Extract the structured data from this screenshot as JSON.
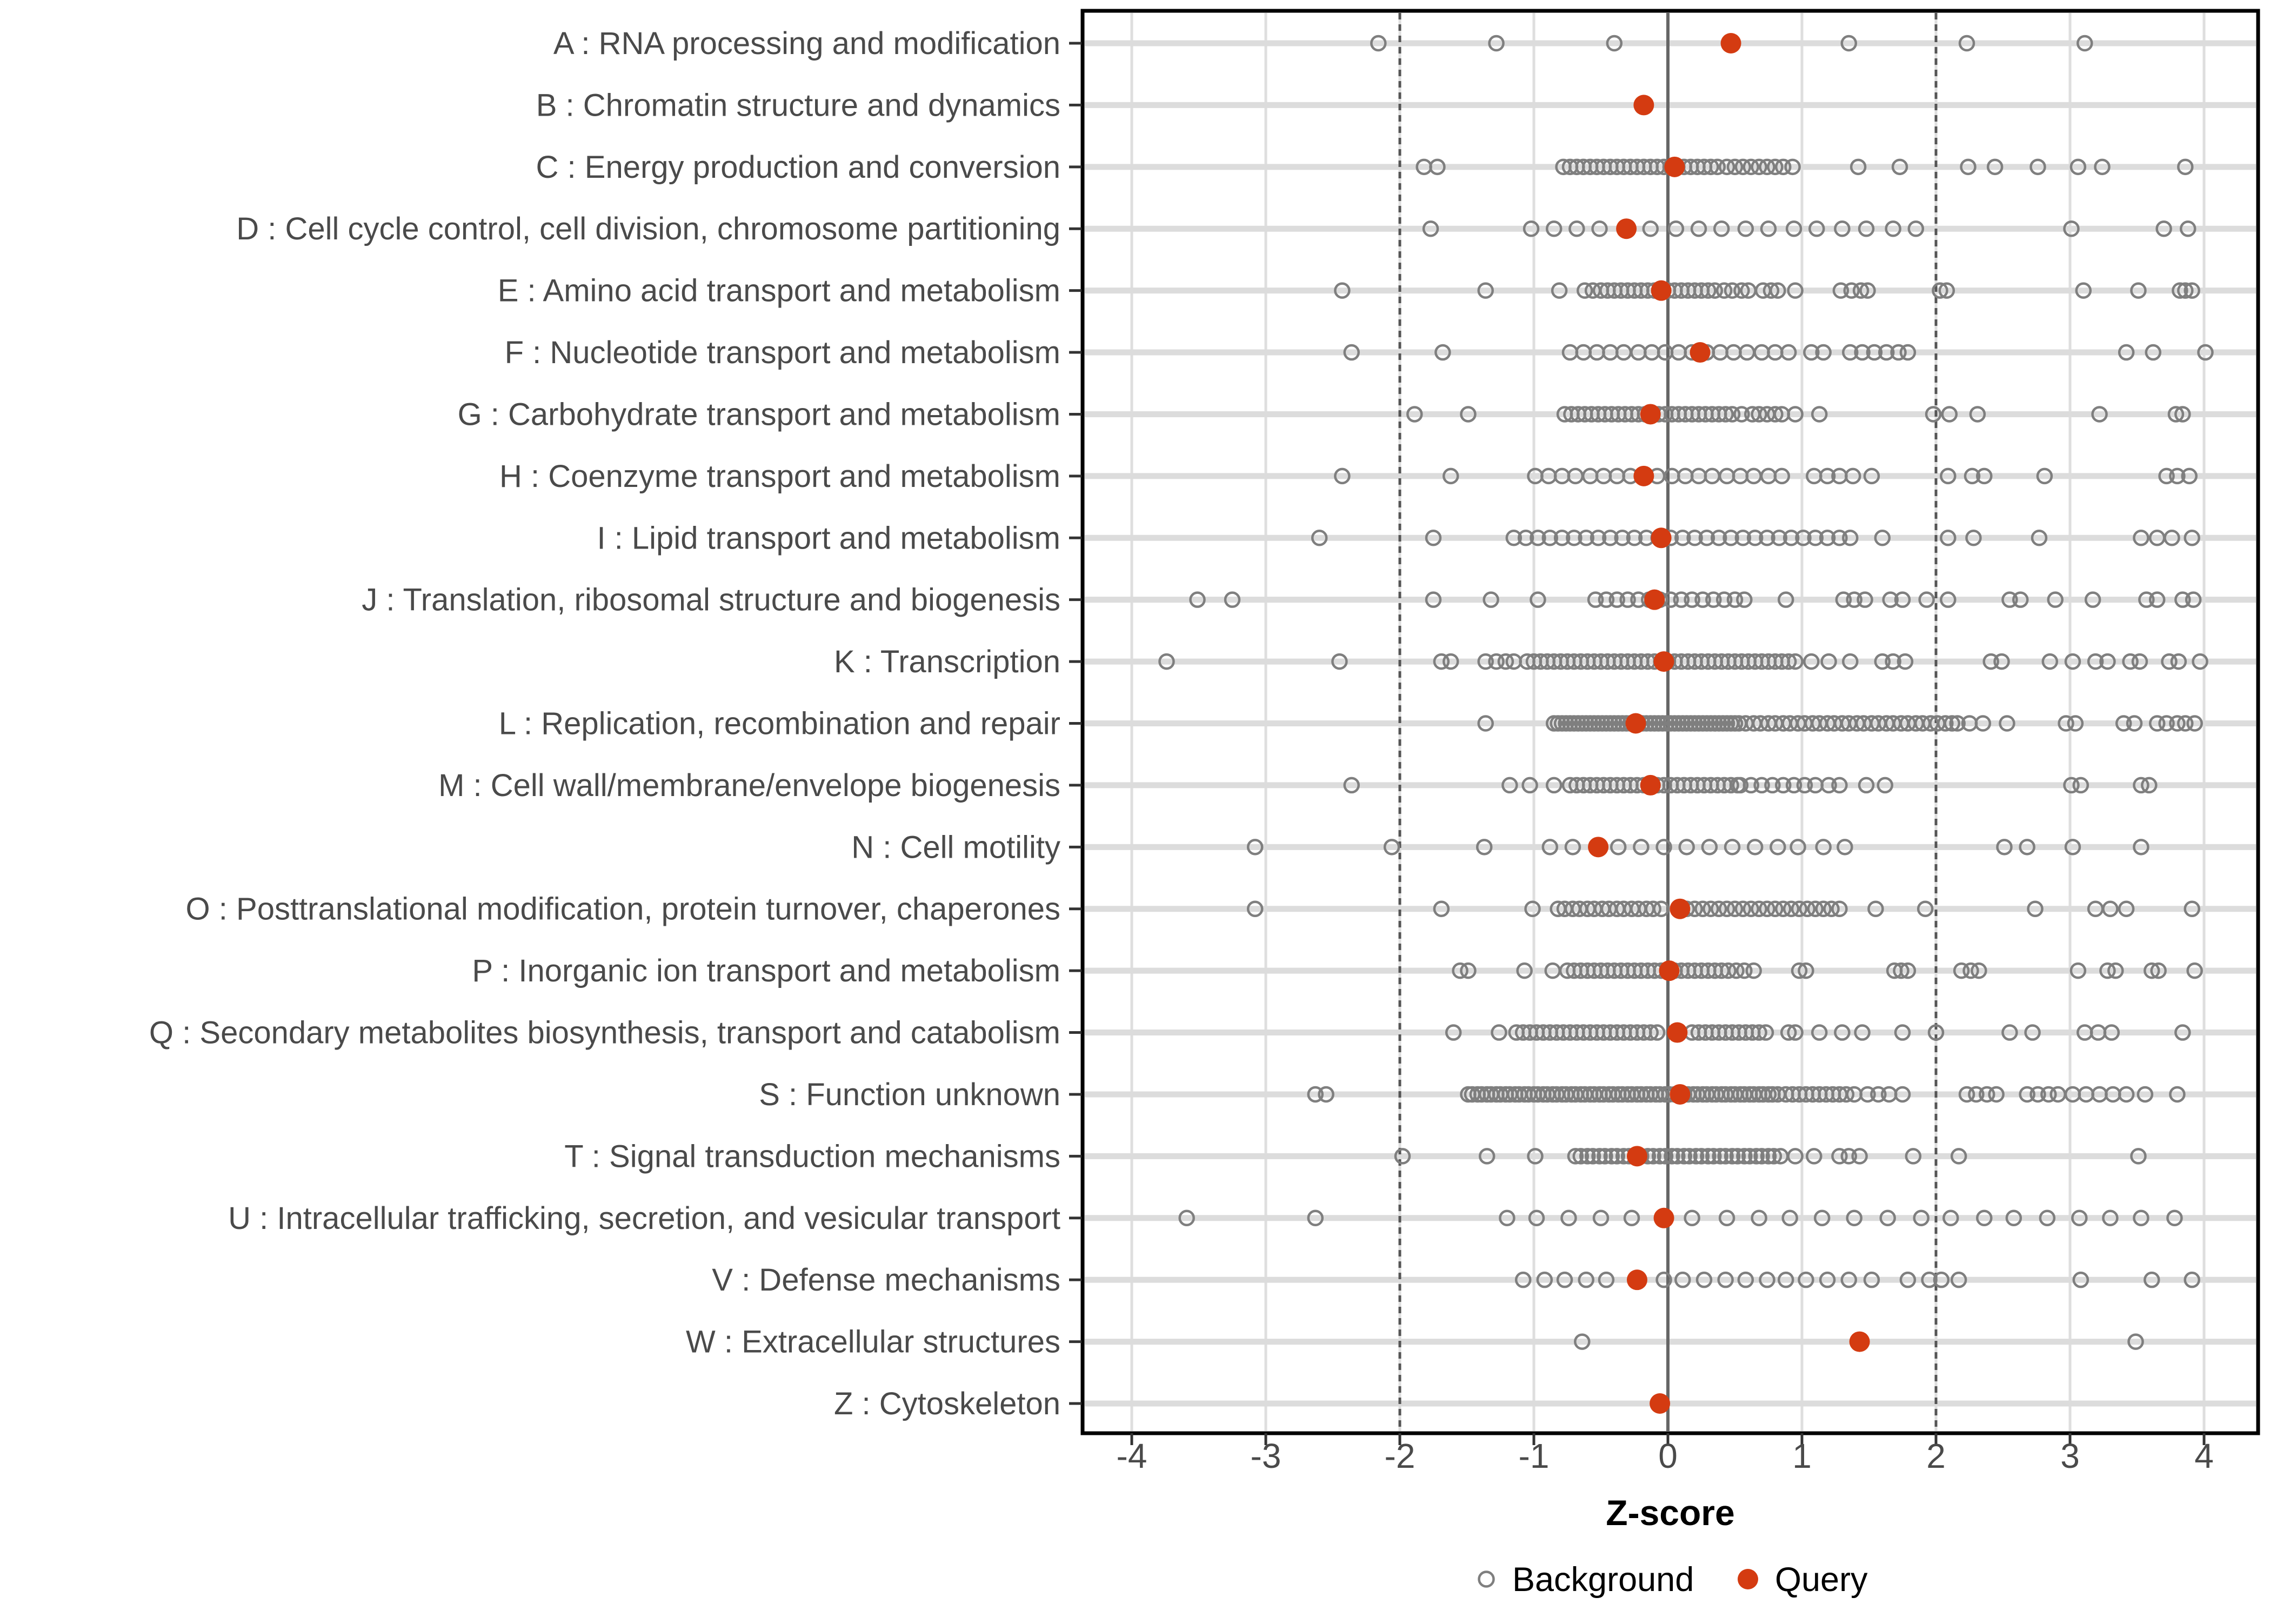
{
  "chart_data": {
    "type": "scatter",
    "subtype": "horizontal-strip-plot",
    "title": "",
    "xlabel": "Z-score",
    "ylabel": "",
    "x_ticks": [
      -4,
      -3,
      -2,
      -1,
      0,
      1,
      2,
      3,
      4
    ],
    "x_range": [
      -4.4,
      4.4
    ],
    "grid": true,
    "reference_lines": {
      "solid": [
        0
      ],
      "dashed": [
        -2,
        2
      ]
    },
    "legend_position": "bottom",
    "legend": [
      {
        "label": "Background",
        "marker": "open-circle",
        "color": "#7f7f7f"
      },
      {
        "label": "Query",
        "marker": "filled-circle",
        "color": "#d43b11"
      }
    ],
    "categories": [
      {
        "code": "A",
        "label": "A : RNA processing and modification",
        "query": 0.47,
        "background": [
          -2.16,
          -1.28,
          -0.4,
          1.35,
          2.23,
          3.11
        ]
      },
      {
        "code": "B",
        "label": "B : Chromatin structure and dynamics",
        "query": -0.18,
        "background": []
      },
      {
        "code": "C",
        "label": "C : Energy production and conversion",
        "query": 0.05,
        "background": [
          -1.82,
          -1.72,
          -0.78,
          -0.73,
          -0.68,
          -0.63,
          -0.58,
          -0.53,
          -0.48,
          -0.43,
          -0.38,
          -0.33,
          -0.28,
          -0.23,
          -0.18,
          -0.13,
          -0.08,
          -0.03,
          0.02,
          0.07,
          0.12,
          0.17,
          0.22,
          0.27,
          0.32,
          0.37,
          0.44,
          0.5,
          0.56,
          0.62,
          0.68,
          0.74,
          0.8,
          0.86,
          0.93,
          1.42,
          1.73,
          2.24,
          2.44,
          2.76,
          3.06,
          3.24,
          3.86
        ]
      },
      {
        "code": "D",
        "label": "D : Cell cycle control, cell division, chromosome partitioning",
        "query": -0.31,
        "background": [
          -1.77,
          -1.02,
          -0.85,
          -0.68,
          -0.51,
          -0.13,
          0.06,
          0.23,
          0.4,
          0.58,
          0.75,
          0.94,
          1.11,
          1.3,
          1.48,
          1.68,
          1.85,
          3.01,
          3.7,
          3.88
        ]
      },
      {
        "code": "E",
        "label": "E : Amino acid transport and metabolism",
        "query": -0.05,
        "background": [
          -2.43,
          -1.36,
          -0.81,
          -0.62,
          -0.56,
          -0.5,
          -0.45,
          -0.4,
          -0.35,
          -0.3,
          -0.25,
          -0.2,
          -0.15,
          -0.1,
          -0.05,
          0.0,
          0.05,
          0.1,
          0.15,
          0.2,
          0.25,
          0.3,
          0.35,
          0.42,
          0.48,
          0.55,
          0.6,
          0.71,
          0.77,
          0.82,
          0.95,
          1.29,
          1.37,
          1.44,
          1.49,
          2.03,
          2.08,
          3.1,
          3.51,
          3.82,
          3.86,
          3.91
        ]
      },
      {
        "code": "F",
        "label": "F : Nucleotide transport and metabolism",
        "query": 0.24,
        "background": [
          -2.36,
          -1.68,
          -0.73,
          -0.63,
          -0.53,
          -0.43,
          -0.33,
          -0.22,
          -0.12,
          -0.02,
          0.08,
          0.18,
          0.29,
          0.39,
          0.49,
          0.59,
          0.7,
          0.8,
          0.9,
          1.07,
          1.16,
          1.36,
          1.45,
          1.54,
          1.63,
          1.72,
          1.79,
          3.42,
          3.62,
          4.01
        ]
      },
      {
        "code": "G",
        "label": "G : Carbohydrate transport and metabolism",
        "query": -0.13,
        "background": [
          -1.89,
          -1.49,
          -0.77,
          -0.72,
          -0.67,
          -0.62,
          -0.57,
          -0.52,
          -0.47,
          -0.42,
          -0.37,
          -0.32,
          -0.27,
          -0.22,
          -0.17,
          -0.12,
          -0.07,
          -0.02,
          0.03,
          0.08,
          0.13,
          0.18,
          0.23,
          0.28,
          0.33,
          0.38,
          0.43,
          0.48,
          0.55,
          0.63,
          0.68,
          0.74,
          0.8,
          0.85,
          0.95,
          1.13,
          1.98,
          2.1,
          2.31,
          3.22,
          3.79,
          3.84
        ]
      },
      {
        "code": "H",
        "label": "H : Coenzyme transport and metabolism",
        "query": -0.18,
        "background": [
          -2.43,
          -1.62,
          -0.99,
          -0.89,
          -0.79,
          -0.69,
          -0.58,
          -0.48,
          -0.38,
          -0.28,
          -0.08,
          0.03,
          0.13,
          0.23,
          0.33,
          0.44,
          0.54,
          0.64,
          0.75,
          0.85,
          1.09,
          1.19,
          1.28,
          1.38,
          1.52,
          2.09,
          2.27,
          2.36,
          2.81,
          3.72,
          3.8,
          3.89
        ]
      },
      {
        "code": "I",
        "label": "I : Lipid transport and metabolism",
        "query": -0.05,
        "background": [
          -2.6,
          -1.75,
          -1.15,
          -1.06,
          -0.97,
          -0.88,
          -0.79,
          -0.7,
          -0.61,
          -0.52,
          -0.43,
          -0.34,
          -0.25,
          -0.16,
          -0.07,
          0.02,
          0.11,
          0.2,
          0.29,
          0.38,
          0.47,
          0.56,
          0.65,
          0.74,
          0.83,
          0.92,
          1.01,
          1.1,
          1.19,
          1.28,
          1.36,
          1.6,
          2.09,
          2.28,
          2.77,
          3.53,
          3.65,
          3.76,
          3.91
        ]
      },
      {
        "code": "J",
        "label": "J : Translation, ribosomal structure and biogenesis",
        "query": -0.1,
        "background": [
          -3.51,
          -3.25,
          -1.75,
          -1.32,
          -0.97,
          -0.54,
          -0.46,
          -0.38,
          -0.3,
          -0.22,
          -0.14,
          -0.06,
          0.02,
          0.1,
          0.18,
          0.26,
          0.34,
          0.42,
          0.5,
          0.57,
          0.88,
          1.31,
          1.39,
          1.47,
          1.66,
          1.75,
          1.93,
          2.09,
          2.55,
          2.63,
          2.89,
          3.17,
          3.57,
          3.65,
          3.84,
          3.92
        ]
      },
      {
        "code": "K",
        "label": "K : Transcription",
        "query": -0.03,
        "background": [
          -3.74,
          -2.45,
          -1.69,
          -1.62,
          -1.36,
          -1.28,
          -1.21,
          -1.15,
          -1.05,
          -1.0,
          -0.95,
          -0.9,
          -0.85,
          -0.8,
          -0.75,
          -0.7,
          -0.65,
          -0.6,
          -0.55,
          -0.5,
          -0.45,
          -0.4,
          -0.35,
          -0.3,
          -0.25,
          -0.2,
          -0.15,
          -0.1,
          -0.05,
          0.0,
          0.05,
          0.1,
          0.15,
          0.2,
          0.25,
          0.3,
          0.35,
          0.4,
          0.45,
          0.5,
          0.55,
          0.6,
          0.65,
          0.7,
          0.75,
          0.8,
          0.85,
          0.9,
          0.95,
          1.07,
          1.2,
          1.36,
          1.6,
          1.68,
          1.77,
          2.41,
          2.49,
          2.85,
          3.02,
          3.19,
          3.28,
          3.45,
          3.52,
          3.74,
          3.81,
          3.97
        ]
      },
      {
        "code": "L",
        "label": "L : Replication, recombination and repair",
        "query": -0.24,
        "background": [
          -1.36,
          -0.85,
          -0.82,
          -0.79,
          -0.76,
          -0.73,
          -0.7,
          -0.67,
          -0.64,
          -0.61,
          -0.58,
          -0.55,
          -0.52,
          -0.49,
          -0.46,
          -0.43,
          -0.4,
          -0.37,
          -0.34,
          -0.31,
          -0.28,
          -0.25,
          -0.22,
          -0.19,
          -0.16,
          -0.13,
          -0.1,
          -0.07,
          -0.04,
          -0.01,
          0.02,
          0.05,
          0.08,
          0.11,
          0.14,
          0.17,
          0.2,
          0.23,
          0.26,
          0.29,
          0.32,
          0.35,
          0.38,
          0.41,
          0.44,
          0.47,
          0.5,
          0.53,
          0.58,
          0.64,
          0.69,
          0.75,
          0.8,
          0.86,
          0.91,
          0.97,
          1.02,
          1.08,
          1.13,
          1.19,
          1.24,
          1.3,
          1.35,
          1.41,
          1.46,
          1.52,
          1.57,
          1.63,
          1.68,
          1.74,
          1.79,
          1.85,
          1.9,
          1.96,
          2.01,
          2.07,
          2.12,
          2.16,
          2.25,
          2.35,
          2.53,
          2.97,
          3.04,
          3.4,
          3.48,
          3.65,
          3.72,
          3.8,
          3.86,
          3.93
        ]
      },
      {
        "code": "M",
        "label": "M : Cell wall/membrane/envelope biogenesis",
        "query": -0.13,
        "background": [
          -2.36,
          -1.18,
          -1.03,
          -0.85,
          -0.73,
          -0.68,
          -0.63,
          -0.58,
          -0.53,
          -0.48,
          -0.43,
          -0.38,
          -0.33,
          -0.28,
          -0.23,
          -0.18,
          -0.13,
          -0.08,
          -0.03,
          0.02,
          0.07,
          0.12,
          0.17,
          0.22,
          0.27,
          0.32,
          0.37,
          0.42,
          0.47,
          0.52,
          0.54,
          0.62,
          0.7,
          0.78,
          0.86,
          0.94,
          1.02,
          1.1,
          1.2,
          1.28,
          1.48,
          1.62,
          3.01,
          3.08,
          3.53,
          3.59
        ]
      },
      {
        "code": "N",
        "label": "N : Cell motility",
        "query": -0.52,
        "background": [
          -3.08,
          -2.06,
          -1.37,
          -0.88,
          -0.71,
          -0.37,
          -0.2,
          -0.03,
          0.14,
          0.31,
          0.48,
          0.65,
          0.82,
          0.97,
          1.16,
          1.32,
          2.51,
          2.68,
          3.02,
          3.53
        ]
      },
      {
        "code": "O",
        "label": "O : Posttranslational modification, protein turnover, chaperones",
        "query": 0.09,
        "background": [
          -3.08,
          -1.69,
          -1.01,
          -0.82,
          -0.77,
          -0.71,
          -0.66,
          -0.6,
          -0.55,
          -0.49,
          -0.44,
          -0.38,
          -0.33,
          -0.27,
          -0.22,
          -0.16,
          -0.11,
          -0.05,
          0.14,
          0.2,
          0.26,
          0.32,
          0.38,
          0.44,
          0.5,
          0.56,
          0.62,
          0.68,
          0.74,
          0.8,
          0.86,
          0.92,
          0.98,
          1.04,
          1.1,
          1.16,
          1.22,
          1.28,
          1.55,
          1.92,
          2.74,
          3.19,
          3.3,
          3.42,
          3.91
        ]
      },
      {
        "code": "P",
        "label": "P : Inorganic ion transport and metabolism",
        "query": 0.01,
        "background": [
          -1.55,
          -1.49,
          -1.07,
          -0.86,
          -0.75,
          -0.7,
          -0.65,
          -0.6,
          -0.55,
          -0.5,
          -0.45,
          -0.4,
          -0.35,
          -0.3,
          -0.25,
          -0.2,
          -0.15,
          -0.1,
          -0.05,
          0.0,
          0.05,
          0.1,
          0.15,
          0.2,
          0.25,
          0.3,
          0.35,
          0.4,
          0.45,
          0.51,
          0.57,
          0.64,
          0.98,
          1.03,
          1.69,
          1.74,
          1.79,
          2.19,
          2.26,
          2.32,
          3.06,
          3.28,
          3.34,
          3.61,
          3.66,
          3.93
        ]
      },
      {
        "code": "Q",
        "label": "Q : Secondary metabolites biosynthesis, transport and catabolism",
        "query": 0.07,
        "background": [
          -1.6,
          -1.26,
          -1.13,
          -1.08,
          -1.03,
          -0.98,
          -0.93,
          -0.88,
          -0.83,
          -0.78,
          -0.73,
          -0.68,
          -0.63,
          -0.58,
          -0.53,
          -0.48,
          -0.43,
          -0.38,
          -0.33,
          -0.28,
          -0.23,
          -0.18,
          -0.13,
          -0.08,
          0.18,
          0.23,
          0.28,
          0.33,
          0.38,
          0.43,
          0.48,
          0.53,
          0.58,
          0.63,
          0.68,
          0.73,
          0.9,
          0.95,
          1.13,
          1.3,
          1.45,
          1.75,
          2.0,
          2.55,
          2.72,
          3.11,
          3.21,
          3.31,
          3.84
        ]
      },
      {
        "code": "S",
        "label": "S : Function unknown",
        "query": 0.09,
        "background": [
          -2.63,
          -2.55,
          -1.49,
          -1.46,
          -1.42,
          -1.39,
          -1.35,
          -1.32,
          -1.28,
          -1.25,
          -1.21,
          -1.18,
          -1.14,
          -1.11,
          -1.07,
          -1.04,
          -1.0,
          -0.97,
          -0.93,
          -0.9,
          -0.86,
          -0.83,
          -0.79,
          -0.76,
          -0.72,
          -0.69,
          -0.65,
          -0.62,
          -0.58,
          -0.55,
          -0.51,
          -0.48,
          -0.44,
          -0.41,
          -0.37,
          -0.34,
          -0.3,
          -0.27,
          -0.23,
          -0.2,
          -0.16,
          -0.13,
          -0.09,
          -0.06,
          -0.02,
          0.01,
          0.05,
          0.08,
          0.12,
          0.15,
          0.19,
          0.22,
          0.26,
          0.29,
          0.33,
          0.36,
          0.4,
          0.43,
          0.47,
          0.5,
          0.54,
          0.57,
          0.61,
          0.64,
          0.68,
          0.71,
          0.75,
          0.78,
          0.82,
          0.88,
          0.93,
          0.98,
          1.03,
          1.08,
          1.13,
          1.18,
          1.23,
          1.28,
          1.33,
          1.39,
          1.49,
          1.57,
          1.65,
          1.75,
          2.23,
          2.3,
          2.38,
          2.45,
          2.68,
          2.76,
          2.84,
          2.91,
          3.02,
          3.12,
          3.22,
          3.32,
          3.42,
          3.56,
          3.8
        ]
      },
      {
        "code": "T",
        "label": "T : Signal transduction mechanisms",
        "query": -0.23,
        "background": [
          -1.98,
          -1.35,
          -0.99,
          -0.69,
          -0.65,
          -0.6,
          -0.56,
          -0.51,
          -0.47,
          -0.42,
          -0.38,
          -0.33,
          -0.29,
          -0.24,
          -0.2,
          -0.15,
          -0.11,
          -0.06,
          -0.02,
          0.03,
          0.07,
          0.12,
          0.16,
          0.21,
          0.25,
          0.3,
          0.34,
          0.39,
          0.43,
          0.48,
          0.52,
          0.57,
          0.61,
          0.66,
          0.7,
          0.75,
          0.79,
          0.84,
          0.95,
          1.09,
          1.28,
          1.35,
          1.43,
          1.83,
          2.17,
          3.51
        ]
      },
      {
        "code": "U",
        "label": "U : Intracellular trafficking, secretion, and vesicular transport",
        "query": -0.03,
        "background": [
          -3.59,
          -2.63,
          -1.2,
          -0.98,
          -0.74,
          -0.5,
          -0.27,
          0.18,
          0.44,
          0.68,
          0.91,
          1.15,
          1.39,
          1.64,
          1.89,
          2.11,
          2.36,
          2.58,
          2.83,
          3.07,
          3.3,
          3.53,
          3.78
        ]
      },
      {
        "code": "V",
        "label": "V : Defense mechanisms",
        "query": -0.23,
        "background": [
          -1.08,
          -0.92,
          -0.77,
          -0.61,
          -0.46,
          -0.03,
          0.11,
          0.27,
          0.43,
          0.58,
          0.74,
          0.88,
          1.03,
          1.19,
          1.35,
          1.52,
          1.79,
          1.95,
          2.04,
          2.17,
          3.08,
          3.61,
          3.91
        ]
      },
      {
        "code": "W",
        "label": "W : Extracellular structures",
        "query": 1.43,
        "background": [
          -0.64,
          3.49
        ]
      },
      {
        "code": "Z",
        "label": "Z : Cytoskeleton",
        "query": -0.06,
        "background": []
      }
    ]
  },
  "colors": {
    "query_point": "#d43b11",
    "background_point_stroke": "#7f7f7f",
    "panel_border": "#000000",
    "grid_stripe": "#dcdcdc",
    "grid_vertical": "#dedede",
    "zero_line": "#666666",
    "dashed_line": "#555555",
    "axis_text": "#4a4a4a",
    "tick_mark": "#333333"
  }
}
